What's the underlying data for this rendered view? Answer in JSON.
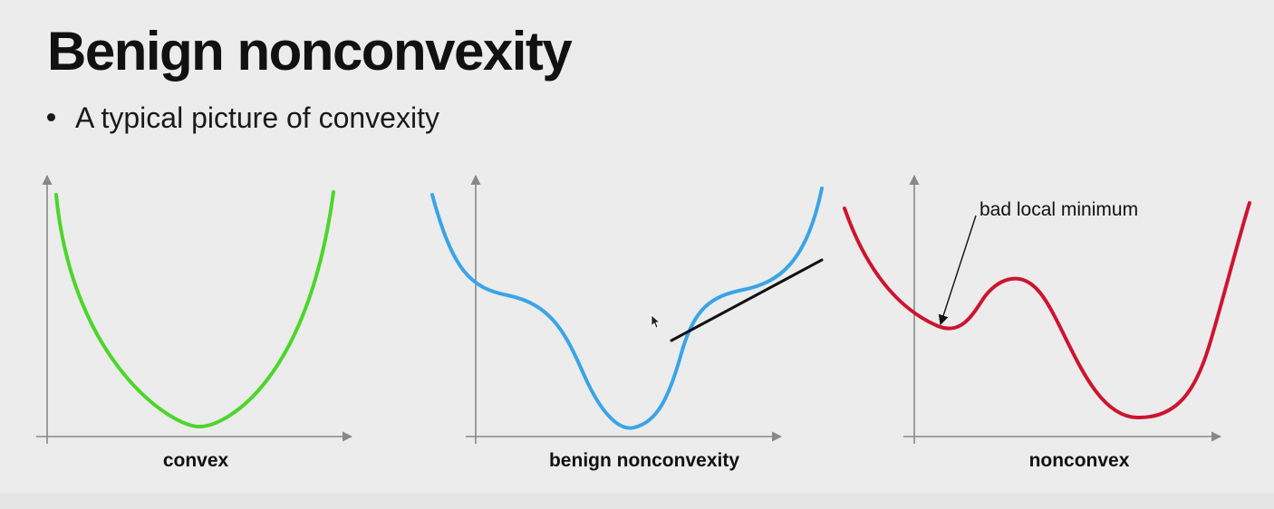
{
  "slide": {
    "title": "Benign nonconvexity",
    "bullet": "A typical picture of convexity"
  },
  "plots": [
    {
      "label": "convex",
      "curve_color": "#4cd62a"
    },
    {
      "label": "benign nonconvexity",
      "curve_color": "#3aa4e6",
      "tangent_color": "#111111"
    },
    {
      "label": "nonconvex",
      "curve_color": "#cc1530",
      "annotation": "bad local minimum"
    }
  ],
  "colors": {
    "background": "#ececec",
    "axis": "#888888",
    "text": "#111111"
  }
}
